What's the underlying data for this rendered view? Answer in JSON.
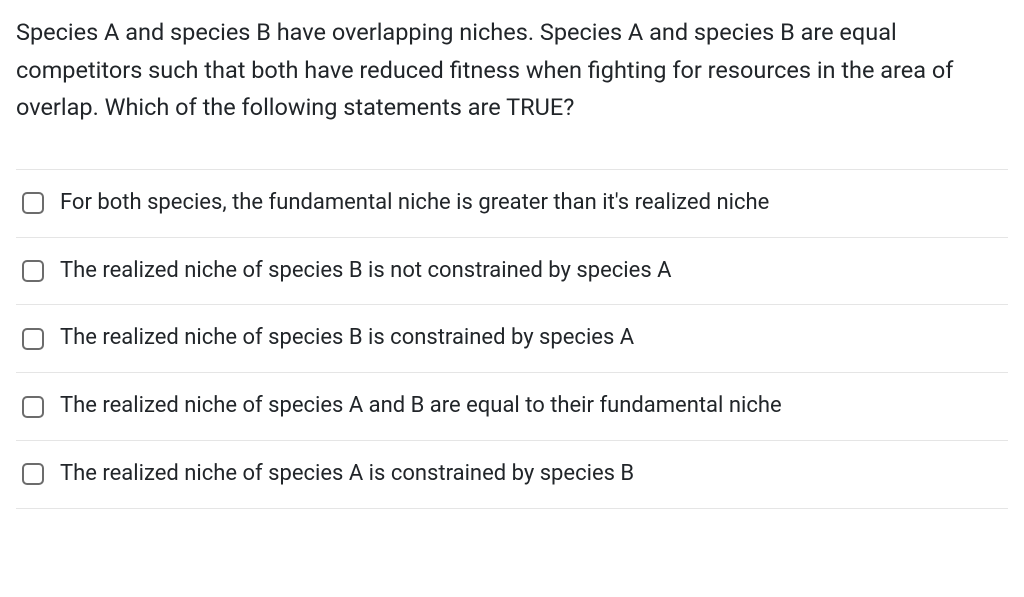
{
  "question": {
    "text": "Species A and species B have overlapping niches. Species A and species B are equal competitors such that both have reduced fitness when fighting for resources in the area of overlap. Which of the following statements are TRUE?"
  },
  "options": [
    {
      "label": "For both species, the fundamental niche is greater than it's realized niche",
      "checked": false
    },
    {
      "label": "The realized niche of species B is not constrained by species A",
      "checked": false
    },
    {
      "label": "The realized niche of species B is constrained by species A",
      "checked": false
    },
    {
      "label": "The realized niche of species A and B are equal to their fundamental niche",
      "checked": false
    },
    {
      "label": "The realized niche of species A is constrained by species B",
      "checked": false
    }
  ],
  "styles": {
    "background_color": "#ffffff",
    "text_color": "#212529",
    "border_color": "#e5e5e5",
    "checkbox_border_color": "#6c6c6c",
    "question_fontsize": 23.5,
    "option_fontsize": 22,
    "checkbox_size": 22,
    "checkbox_radius": 5
  }
}
